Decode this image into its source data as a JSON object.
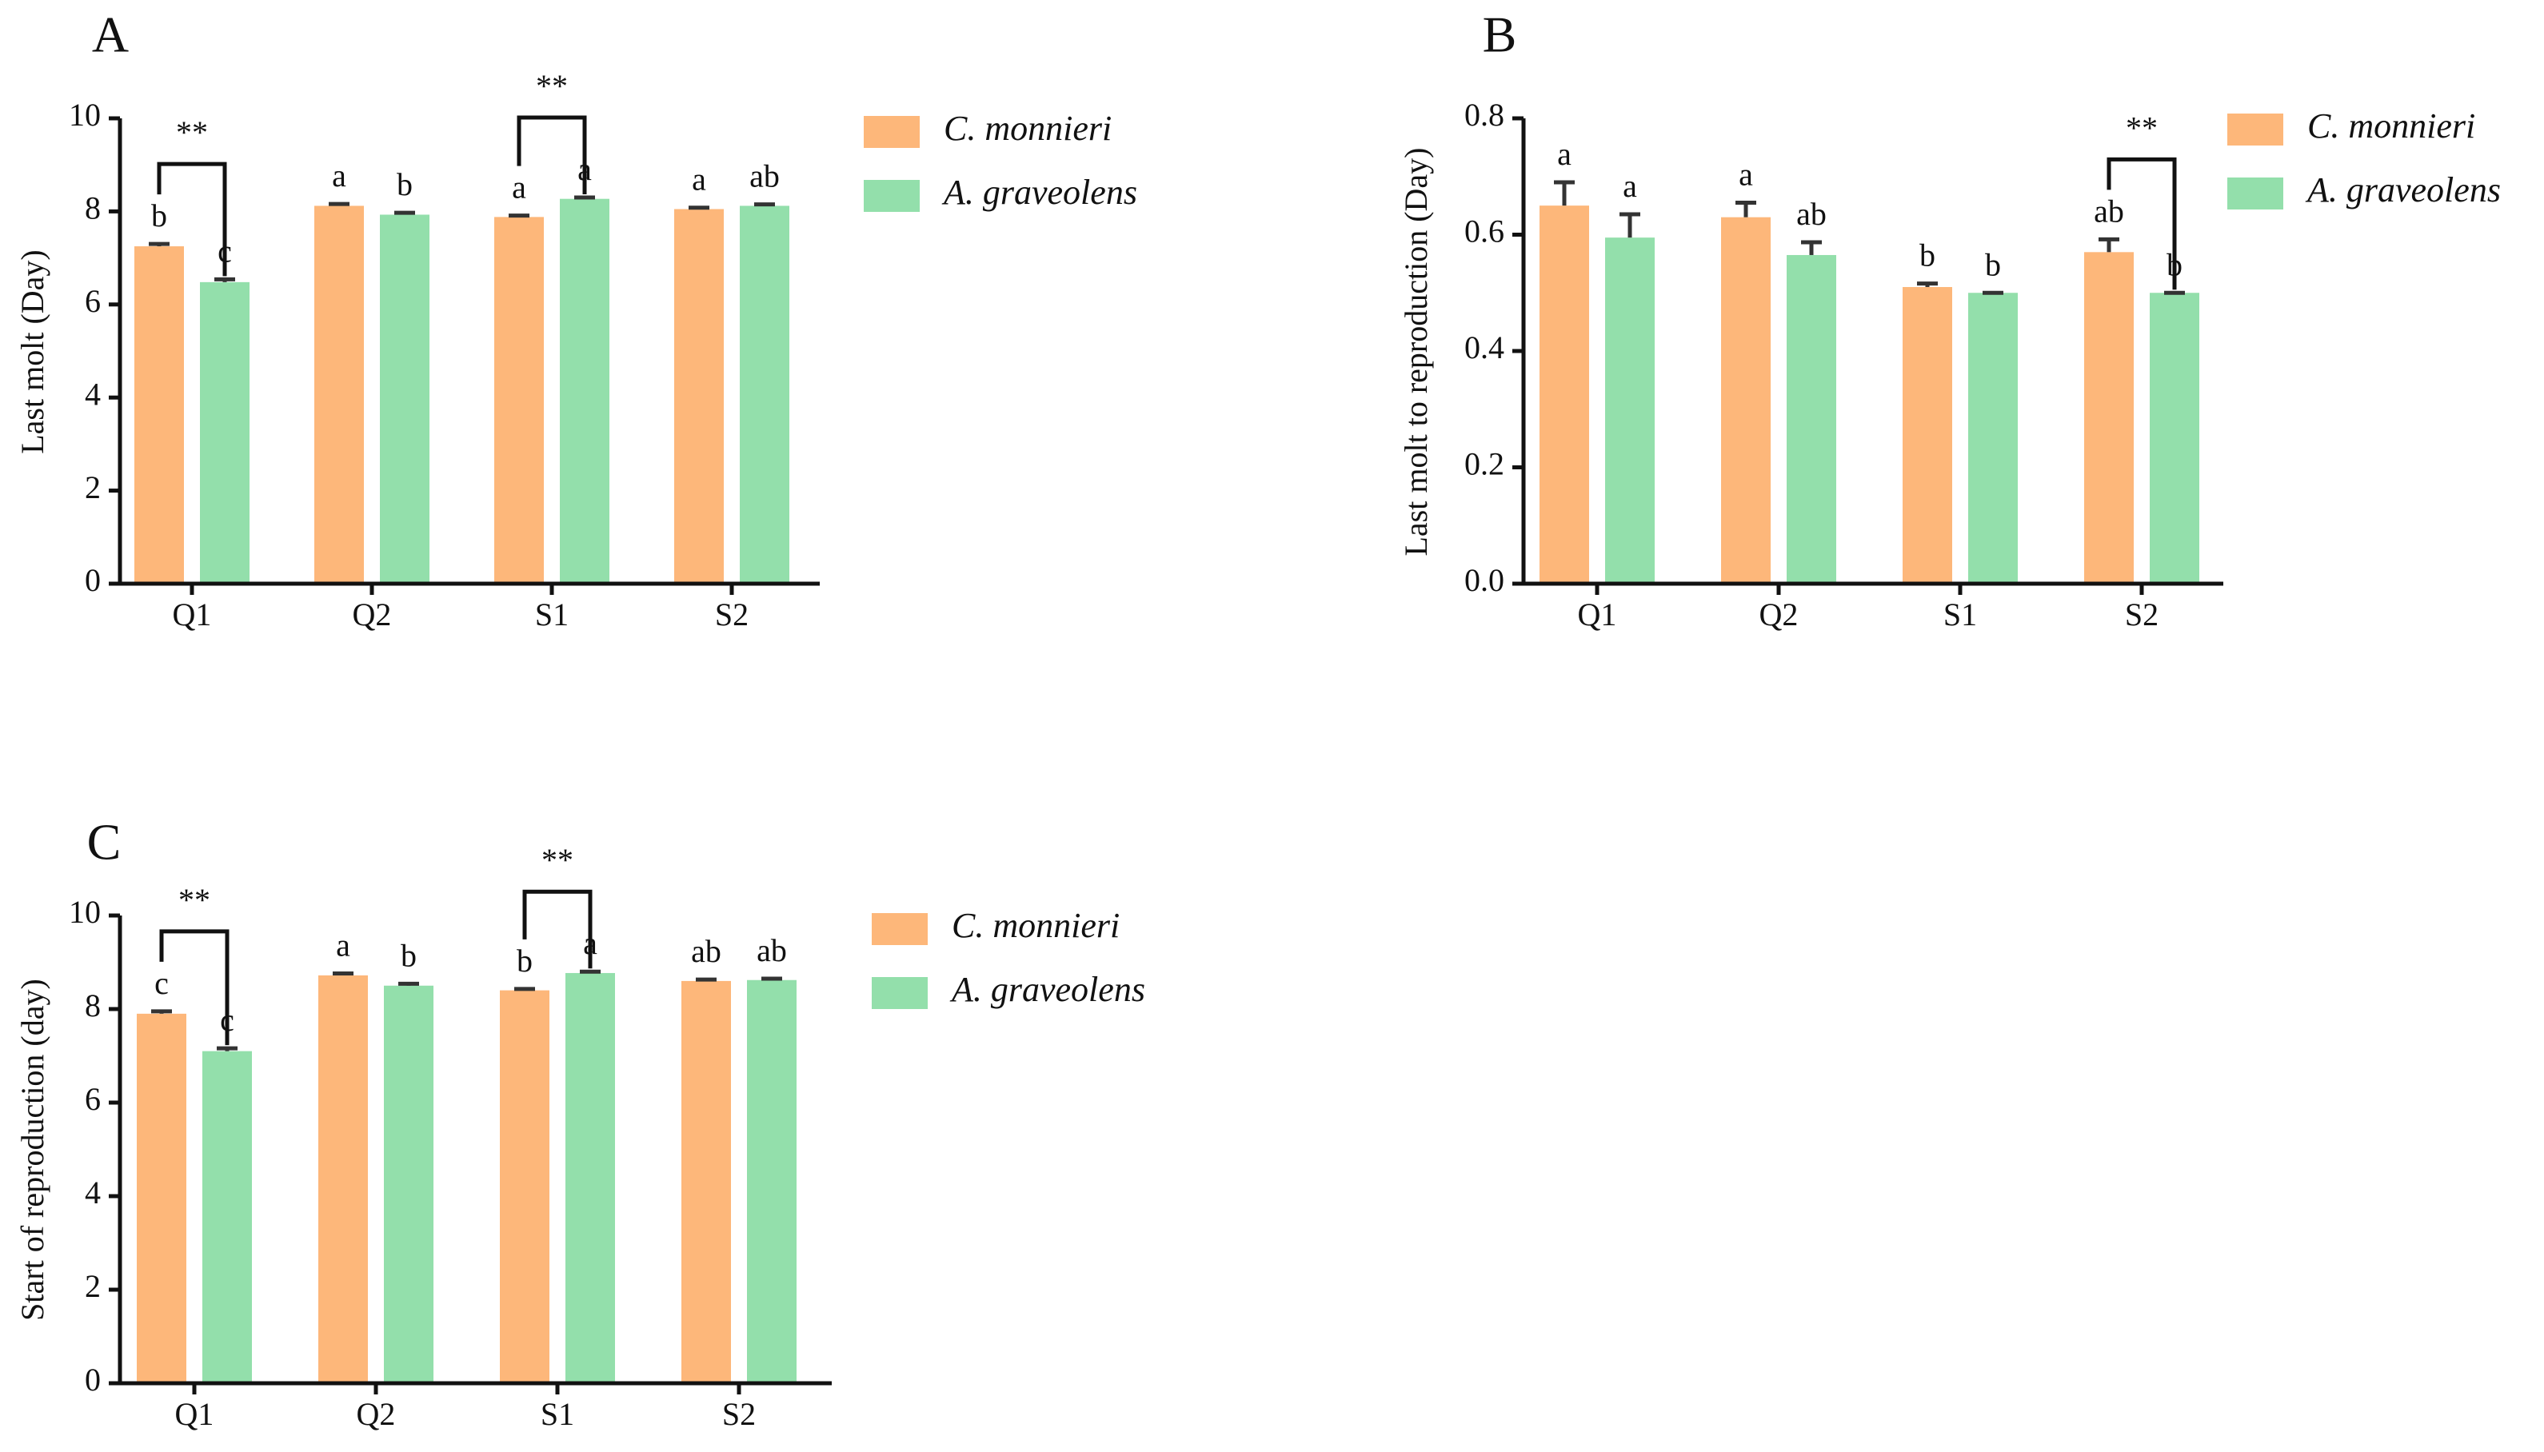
{
  "colors": {
    "c_monnieri": "#fdb77a",
    "a_graveolens": "#93dfab",
    "axis": "#111111",
    "error_bar": "#333333"
  },
  "chart_data": [
    {
      "type": "bar",
      "panel": "A",
      "categories": [
        "Q1",
        "Q2",
        "S1",
        "S2"
      ],
      "series": [
        {
          "name": "C. monnieri",
          "values": [
            7.25,
            8.12,
            7.88,
            8.05
          ],
          "errors": [
            0.05,
            0.04,
            0.03,
            0.03
          ],
          "letters": [
            "b",
            "a",
            "a",
            "a"
          ]
        },
        {
          "name": "A. graveolens",
          "values": [
            6.48,
            7.93,
            8.27,
            8.12
          ],
          "errors": [
            0.06,
            0.04,
            0.03,
            0.03
          ],
          "letters": [
            "c",
            "b",
            "a",
            "ab"
          ]
        }
      ],
      "significance": [
        {
          "category": "Q1",
          "label": "**"
        },
        {
          "category": "S1",
          "label": "**"
        }
      ],
      "xlabel": "",
      "ylabel": "Last molt (Day)",
      "ylim": [
        0,
        10
      ],
      "yticks": [
        "0",
        "2",
        "4",
        "6",
        "8",
        "10"
      ],
      "legend": "top-right"
    },
    {
      "type": "bar",
      "panel": "B",
      "categories": [
        "Q1",
        "Q2",
        "S1",
        "S2"
      ],
      "series": [
        {
          "name": "C. monnieri",
          "values": [
            0.65,
            0.63,
            0.51,
            0.57
          ],
          "errors": [
            0.04,
            0.025,
            0.006,
            0.022
          ],
          "letters": [
            "a",
            "a",
            "b",
            "ab"
          ]
        },
        {
          "name": "A. graveolens",
          "values": [
            0.595,
            0.565,
            0.5,
            0.5
          ],
          "errors": [
            0.04,
            0.022,
            0,
            0
          ],
          "letters": [
            "a",
            "ab",
            "b",
            "b"
          ]
        }
      ],
      "significance": [
        {
          "category": "S2",
          "label": "**"
        }
      ],
      "xlabel": "",
      "ylabel": "Last molt to reproduction (Day)",
      "ylim": [
        0,
        0.8
      ],
      "yticks": [
        "0.0",
        "0.2",
        "0.4",
        "0.6",
        "0.8"
      ],
      "legend": "top-right"
    },
    {
      "type": "bar",
      "panel": "C",
      "categories": [
        "Q1",
        "Q2",
        "S1",
        "S2"
      ],
      "series": [
        {
          "name": "C. monnieri",
          "values": [
            7.9,
            8.72,
            8.4,
            8.6
          ],
          "errors": [
            0.05,
            0.04,
            0.03,
            0.03
          ],
          "letters": [
            "c",
            "a",
            "b",
            "ab"
          ]
        },
        {
          "name": "A. graveolens",
          "values": [
            7.1,
            8.5,
            8.77,
            8.62
          ],
          "errors": [
            0.06,
            0.04,
            0.03,
            0.03
          ],
          "letters": [
            "c",
            "b",
            "a",
            "ab"
          ]
        }
      ],
      "significance": [
        {
          "category": "Q1",
          "label": "**"
        },
        {
          "category": "S1",
          "label": "**"
        }
      ],
      "xlabel": "",
      "ylabel": "Start of reproduction (day)",
      "ylim": [
        0,
        10
      ],
      "yticks": [
        "0",
        "2",
        "4",
        "6",
        "8",
        "10"
      ],
      "legend": "top-right"
    }
  ]
}
